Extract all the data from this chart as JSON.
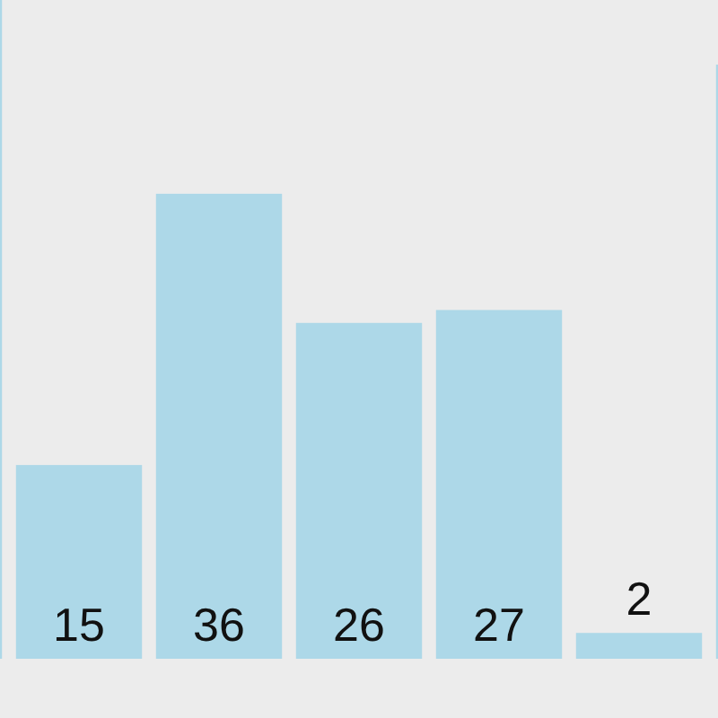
{
  "chart_data": {
    "type": "bar",
    "categories": [
      null,
      null,
      null,
      null,
      null,
      null,
      null
    ],
    "values": [
      51,
      15,
      36,
      26,
      27,
      2,
      46
    ],
    "value_labels": [
      null,
      "15",
      "36",
      "26",
      "27",
      "2",
      null
    ],
    "color": "#add8e8",
    "ylim": [
      0,
      51
    ]
  }
}
